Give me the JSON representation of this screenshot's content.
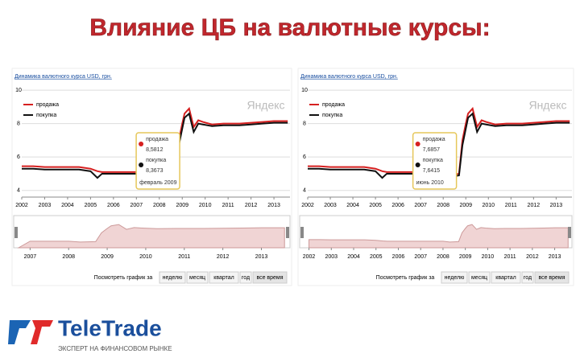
{
  "title": "Влияние ЦБ на валютные курсы:",
  "logo": {
    "name": "TeleTrade",
    "slogan": "ЭКСПЕРТ НА ФИНАНСОВОМ РЫНКЕ"
  },
  "chart_data": [
    {
      "type": "line",
      "title": "Динамика валютного курса USD, грн.",
      "watermark": "Яндекс",
      "x": [
        2002,
        2002.5,
        2003,
        2003.5,
        2004,
        2004.5,
        2005,
        2005.3,
        2005.5,
        2006,
        2006.5,
        2007,
        2007.5,
        2008,
        2008.3,
        2008.7,
        2008.85,
        2009.0,
        2009.1,
        2009.3,
        2009.5,
        2009.7,
        2009.9,
        2010.3,
        2010.8,
        2011.5,
        2012,
        2012.5,
        2013,
        2013.6
      ],
      "series": [
        {
          "name": "продажа",
          "color": "#d62020",
          "values": [
            5.45,
            5.45,
            5.4,
            5.4,
            5.4,
            5.4,
            5.3,
            5.15,
            5.1,
            5.1,
            5.1,
            5.1,
            5.1,
            5.1,
            4.9,
            5.0,
            7.0,
            8.0,
            8.6,
            8.9,
            7.8,
            8.2,
            8.1,
            7.95,
            8.0,
            8.0,
            8.05,
            8.1,
            8.15,
            8.15
          ]
        },
        {
          "name": "покупка",
          "color": "#111111",
          "values": [
            5.3,
            5.3,
            5.25,
            5.25,
            5.25,
            5.25,
            5.15,
            4.75,
            5.0,
            5.0,
            5.0,
            5.0,
            5.0,
            5.0,
            4.8,
            4.9,
            6.7,
            7.7,
            8.35,
            8.6,
            7.5,
            8.0,
            7.95,
            7.85,
            7.9,
            7.9,
            7.95,
            8.0,
            8.05,
            8.05
          ]
        }
      ],
      "annotation": {
        "x": 2009.1,
        "lines": [
          "продажа",
          "8,5812",
          "покупка",
          "8,3673",
          "февраль 2009"
        ]
      },
      "xlim": [
        2002,
        2013.7
      ],
      "xticks": [
        2002,
        2003,
        2004,
        2005,
        2006,
        2007,
        2008,
        2009,
        2010,
        2011,
        2012,
        2013
      ],
      "ylim": [
        3.6,
        10.2
      ],
      "yticks": [
        4,
        6,
        8,
        10
      ],
      "nav_xlim": [
        2006.7,
        2013.7
      ],
      "nav_xticks": [
        2007,
        2008,
        2009,
        2010,
        2011,
        2012,
        2013
      ],
      "buttons": [
        "Посмотреть график за",
        "неделю",
        "месяц",
        "квартал",
        "год",
        "все время"
      ]
    },
    {
      "type": "line",
      "title": "Динамика валютного курса USD, грн.",
      "watermark": "Яндекс",
      "x": [
        2002,
        2002.5,
        2003,
        2003.5,
        2004,
        2004.5,
        2005,
        2005.3,
        2005.5,
        2006,
        2006.5,
        2007,
        2007.5,
        2008,
        2008.3,
        2008.7,
        2008.85,
        2009.0,
        2009.1,
        2009.3,
        2009.5,
        2009.7,
        2009.9,
        2010.3,
        2010.8,
        2011.5,
        2012,
        2012.5,
        2013,
        2013.6
      ],
      "series": [
        {
          "name": "продажа",
          "color": "#d62020",
          "values": [
            5.45,
            5.45,
            5.4,
            5.4,
            5.4,
            5.4,
            5.3,
            5.15,
            5.1,
            5.1,
            5.1,
            5.1,
            5.1,
            5.1,
            4.9,
            5.0,
            7.0,
            8.0,
            8.6,
            8.9,
            7.8,
            8.2,
            8.1,
            7.95,
            8.0,
            8.0,
            8.05,
            8.1,
            8.15,
            8.15
          ]
        },
        {
          "name": "покупка",
          "color": "#111111",
          "values": [
            5.3,
            5.3,
            5.25,
            5.25,
            5.25,
            5.25,
            5.15,
            4.75,
            5.0,
            5.0,
            5.0,
            5.0,
            5.0,
            5.0,
            4.8,
            4.9,
            6.7,
            7.7,
            8.35,
            8.6,
            7.5,
            8.0,
            7.95,
            7.85,
            7.9,
            7.9,
            7.95,
            8.0,
            8.05,
            8.05
          ]
        }
      ],
      "annotation": {
        "x": 2008.8,
        "lines": [
          "продажа",
          "7,6857",
          "покупка",
          "7,6415",
          "июнь 2010"
        ]
      },
      "xlim": [
        2002,
        2013.7
      ],
      "xticks": [
        2002,
        2003,
        2004,
        2005,
        2006,
        2007,
        2008,
        2009,
        2010,
        2011,
        2012,
        2013
      ],
      "ylim": [
        3.6,
        10.2
      ],
      "yticks": [
        4,
        6,
        8,
        10
      ],
      "nav_xlim": [
        2001.8,
        2013.7
      ],
      "nav_xticks": [
        2002,
        2003,
        2004,
        2005,
        2006,
        2007,
        2008,
        2009,
        2010,
        2011,
        2012,
        2013
      ],
      "buttons": [
        "Посмотреть график за",
        "неделю",
        "месяц",
        "квартал",
        "год",
        "все время"
      ]
    }
  ]
}
